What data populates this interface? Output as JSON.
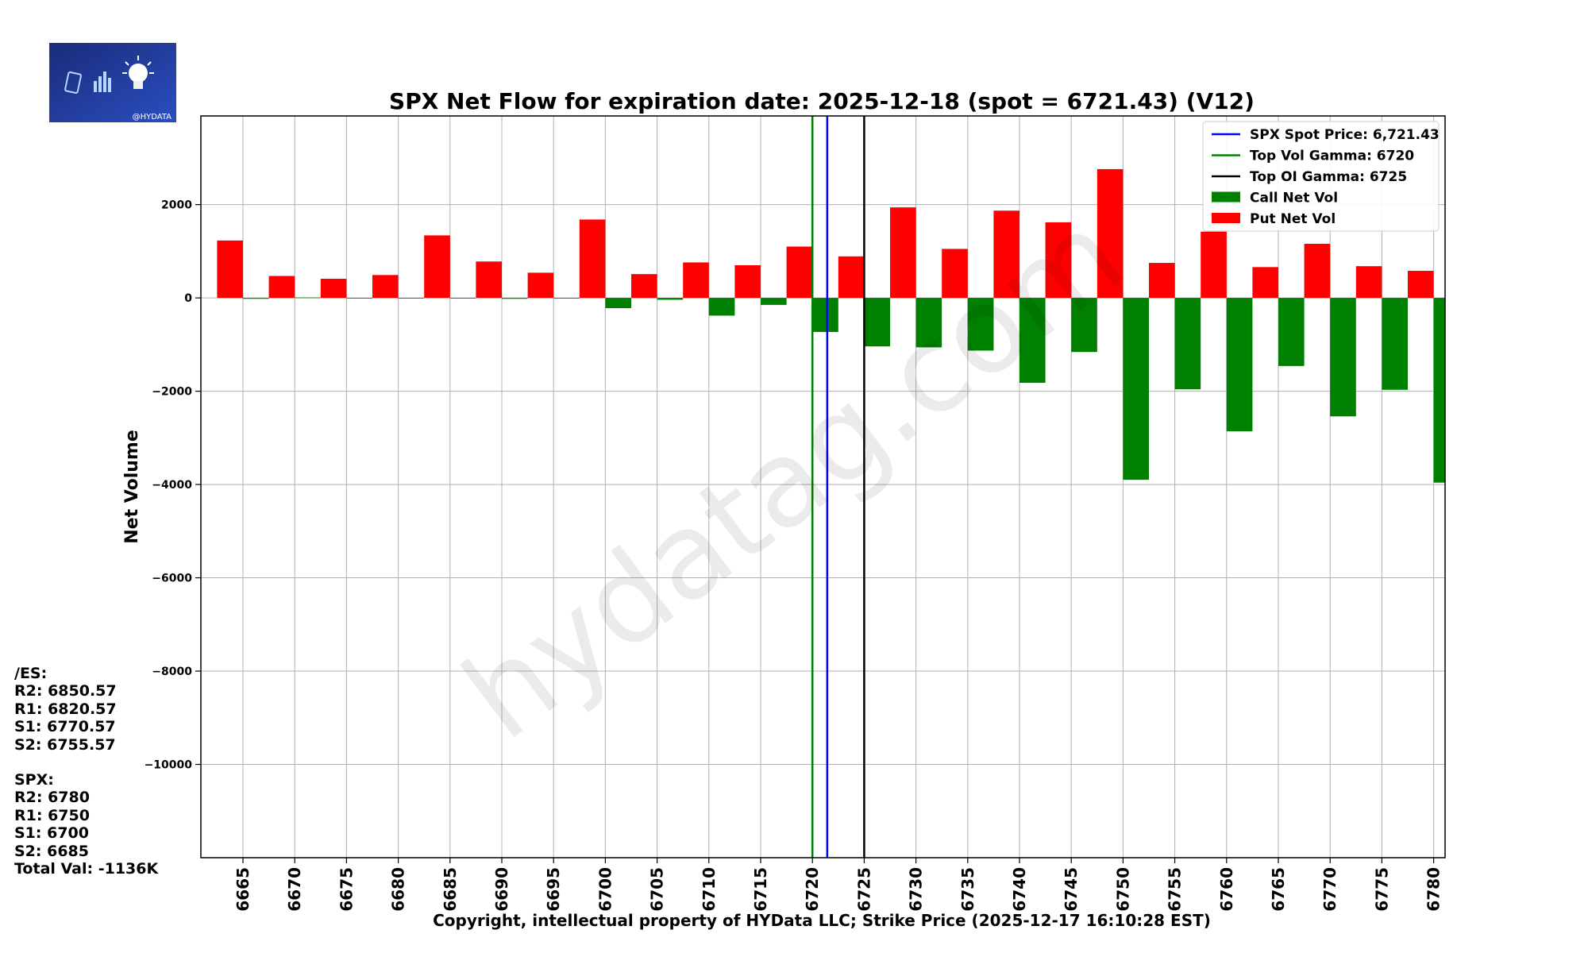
{
  "logo": {
    "caption": "@HYDATA"
  },
  "watermark": "hydatag.com",
  "footer": "Copyright, intellectual property of HYData LLC; Strike Price (2025-12-17 16:10:28 EST)",
  "levels": {
    "es_heading": "/ES:",
    "es": [
      "R2: 6850.57",
      "R1: 6820.57",
      "S1: 6770.57",
      "S2: 6755.57"
    ],
    "spx_heading": "SPX:",
    "spx": [
      "R2: 6780",
      "R1: 6750",
      "S1: 6700",
      "S2: 6685"
    ],
    "total": "Total Val: -1136K"
  },
  "chart_data": {
    "type": "bar",
    "title": "SPX Net Flow for expiration date: 2025-12-18 (spot = 6721.43) (V12)",
    "xlabel": "",
    "ylabel": "Net Volume",
    "ylim": [
      -12000,
      3900
    ],
    "yticks": [
      2000,
      0,
      -2000,
      -4000,
      -6000,
      -8000,
      -10000
    ],
    "ytick_labels": [
      "2000",
      "0",
      "−2000",
      "−4000",
      "−6000",
      "−8000",
      "−10000"
    ],
    "grid": true,
    "legend_position": "top-right",
    "categories": [
      "6665",
      "6670",
      "6675",
      "6680",
      "6685",
      "6690",
      "6695",
      "6700",
      "6705",
      "6710",
      "6715",
      "6720",
      "6725",
      "6730",
      "6735",
      "6740",
      "6745",
      "6750",
      "6755",
      "6760",
      "6765",
      "6770",
      "6775",
      "6780"
    ],
    "series": [
      {
        "name": "Call Net Vol",
        "color": "#008000",
        "values": [
          -20,
          10,
          0,
          0,
          0,
          -20,
          0,
          -220,
          -40,
          -380,
          -150,
          -730,
          -1040,
          -1060,
          -1130,
          -1820,
          -1160,
          -3900,
          -1960,
          -2860,
          -1460,
          -2540,
          -1970,
          -3960
        ]
      },
      {
        "name": "Put Net Vol",
        "color": "#ff0000",
        "values": [
          1230,
          470,
          410,
          490,
          1340,
          780,
          540,
          1680,
          510,
          760,
          700,
          1100,
          890,
          1940,
          1050,
          1870,
          1620,
          2760,
          750,
          1420,
          660,
          1160,
          680,
          580
        ]
      }
    ],
    "reference_lines": [
      {
        "name": "SPX Spot Price",
        "label": "SPX Spot Price: 6,721.43",
        "value": 6721.43,
        "color": "#0000ff"
      },
      {
        "name": "Top Vol Gamma",
        "label": "Top Vol Gamma: 6720",
        "value": 6720,
        "color": "#008000"
      },
      {
        "name": "Top OI Gamma",
        "label": "Top OI Gamma: 6725",
        "value": 6725,
        "color": "#000000"
      }
    ]
  }
}
